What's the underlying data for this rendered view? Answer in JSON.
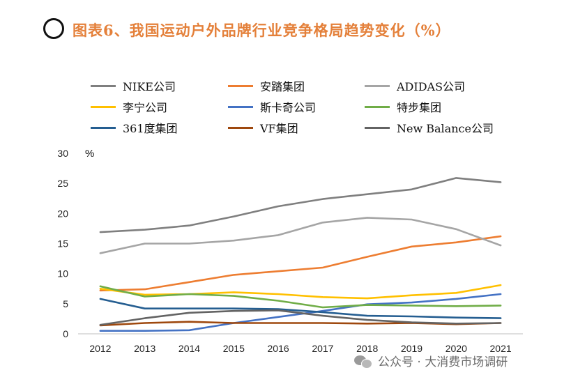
{
  "header": {
    "title": "图表6、我国运动户外品牌行业竞争格局趋势变化（%）"
  },
  "watermark": {
    "icon": "wechat-icon",
    "text": "公众号 · 大消费市场调研"
  },
  "chart_data": {
    "type": "line",
    "title": "图表6、我国运动户外品牌行业竞争格局趋势变化（%）",
    "xlabel": "",
    "ylabel": "%",
    "ylim": [
      0,
      30
    ],
    "yticks": [
      "0",
      "5",
      "10",
      "15",
      "20",
      "25",
      "30"
    ],
    "x": [
      "2012",
      "2013",
      "2014",
      "2015",
      "2016",
      "2017",
      "2018",
      "2019",
      "2020",
      "2021"
    ],
    "grid": false,
    "legend_position": "top",
    "series": [
      {
        "name": "NIKE公司",
        "color": "#7F7F7F",
        "values": [
          16.9,
          17.3,
          18.0,
          19.5,
          21.2,
          22.4,
          23.2,
          24.0,
          25.9,
          25.2
        ]
      },
      {
        "name": "安踏集团",
        "color": "#ED7D31",
        "values": [
          7.2,
          7.4,
          8.6,
          9.8,
          10.4,
          11.0,
          12.8,
          14.5,
          15.2,
          16.2
        ]
      },
      {
        "name": "ADIDAS公司",
        "color": "#A5A5A5",
        "values": [
          13.4,
          15.0,
          15.0,
          15.5,
          16.4,
          18.5,
          19.3,
          19.0,
          17.4,
          14.7
        ]
      },
      {
        "name": "李宁公司",
        "color": "#FFC000",
        "values": [
          7.5,
          6.5,
          6.6,
          6.9,
          6.6,
          6.1,
          5.9,
          6.4,
          6.8,
          8.1
        ]
      },
      {
        "name": "斯卡奇公司",
        "color": "#4472C4",
        "values": [
          0.5,
          0.5,
          0.6,
          1.8,
          2.8,
          3.8,
          4.9,
          5.2,
          5.8,
          6.6
        ]
      },
      {
        "name": "特步集团",
        "color": "#70AD47",
        "values": [
          7.9,
          6.2,
          6.6,
          6.3,
          5.5,
          4.4,
          4.8,
          4.7,
          4.6,
          4.7
        ]
      },
      {
        "name": "361度集团",
        "color": "#255E91",
        "values": [
          5.8,
          4.2,
          4.2,
          4.2,
          4.1,
          3.6,
          3.0,
          2.9,
          2.7,
          2.6
        ]
      },
      {
        "name": "VF集团",
        "color": "#9E480E",
        "values": [
          1.4,
          1.8,
          2.0,
          1.8,
          1.8,
          1.8,
          1.7,
          1.8,
          1.6,
          1.8
        ]
      },
      {
        "name": "New Balance公司",
        "color": "#636363",
        "values": [
          1.5,
          2.6,
          3.5,
          3.8,
          3.9,
          3.0,
          2.3,
          1.9,
          1.7,
          1.8
        ]
      }
    ]
  }
}
